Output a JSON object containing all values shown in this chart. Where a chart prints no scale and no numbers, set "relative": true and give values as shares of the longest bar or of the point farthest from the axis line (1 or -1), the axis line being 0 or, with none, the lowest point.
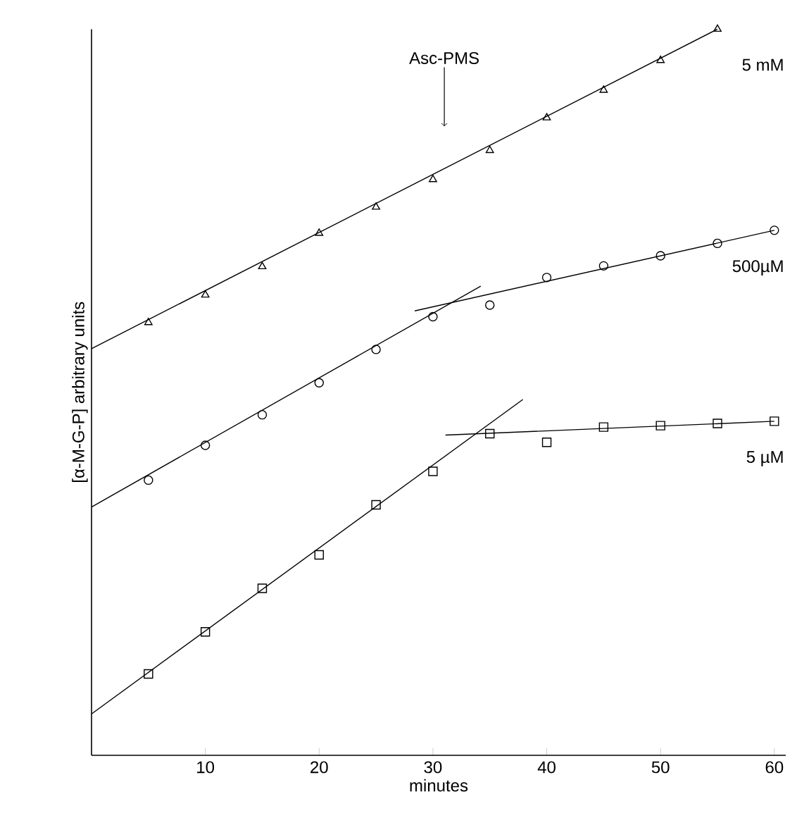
{
  "chart_data": {
    "type": "scatter",
    "xlabel": "minutes",
    "ylabel": "[α-M-G-P] arbitrary units",
    "relative": true,
    "xlim": [
      0,
      61
    ],
    "xticks": [
      10,
      20,
      30,
      40,
      50,
      60
    ],
    "annotations": [
      {
        "text": "Asc-PMS",
        "x": 31,
        "y": 0.866
      }
    ],
    "x": [
      5,
      10,
      15,
      20,
      25,
      30,
      35,
      40,
      45,
      50,
      55,
      60
    ],
    "series": [
      {
        "name": "5 mM",
        "marker": "triangle",
        "color": "#000000",
        "values": [
          0.596,
          0.634,
          0.673,
          0.719,
          0.755,
          0.793,
          0.833,
          0.878,
          0.916,
          0.957,
          1.0,
          null
        ]
      },
      {
        "name": "500µM",
        "marker": "circle",
        "color": "#000000",
        "values": [
          0.379,
          0.427,
          0.469,
          0.513,
          0.559,
          0.604,
          0.62,
          0.658,
          0.674,
          0.688,
          0.705,
          0.723
        ]
      },
      {
        "name": "5 µM",
        "marker": "square",
        "color": "#000000",
        "values": [
          0.112,
          0.17,
          0.23,
          0.276,
          0.345,
          0.391,
          0.443,
          0.431,
          0.452,
          0.454,
          0.457,
          0.46
        ]
      },
      {
        "type": "line",
        "color": "#000000",
        "x": [
          0,
          55
        ],
        "values": [
          0.56,
          1.0
        ]
      },
      {
        "type": "line",
        "color": "#000000",
        "x": [
          0,
          34.2
        ],
        "values": [
          0.342,
          0.646
        ]
      },
      {
        "type": "line",
        "color": "#000000",
        "x": [
          28.4,
          60
        ],
        "values": [
          0.612,
          0.723
        ]
      },
      {
        "type": "line",
        "color": "#000000",
        "x": [
          0,
          37.9
        ],
        "values": [
          0.057,
          0.49
        ]
      },
      {
        "type": "line",
        "color": "#000000",
        "x": [
          31.1,
          60
        ],
        "values": [
          0.441,
          0.46
        ]
      }
    ]
  }
}
